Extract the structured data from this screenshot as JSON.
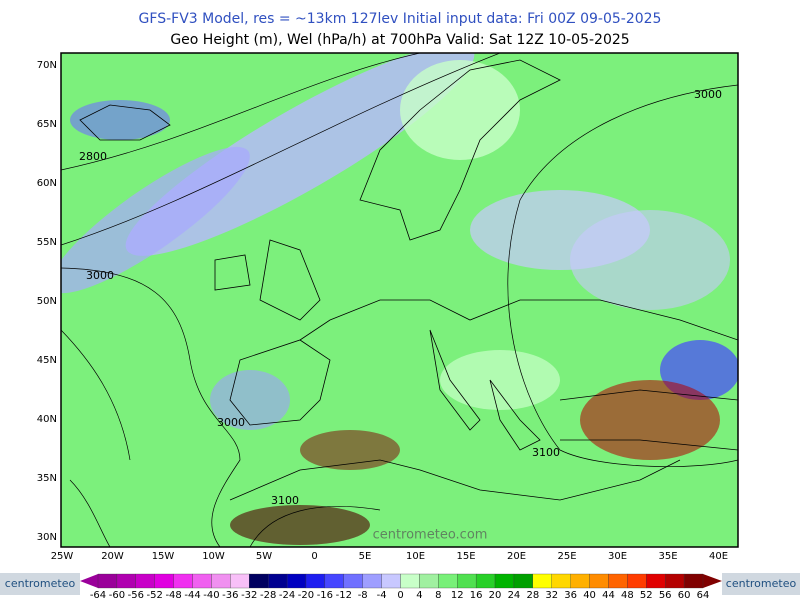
{
  "header": {
    "line1": "GFS-FV3 Model, res = ~13km 127lev    Initial input data: Fri 00Z 09-05-2025",
    "line2": "Geo Height (m), Wel (hPa/h) at 700hPa  Valid: Sat 12Z 10-05-2025"
  },
  "map": {
    "lat_labels": [
      "70N",
      "65N",
      "60N",
      "55N",
      "50N",
      "45N",
      "40N",
      "35N",
      "30N"
    ],
    "lon_labels": [
      "25W",
      "20W",
      "15W",
      "10W",
      "5W",
      "0",
      "5E",
      "10E",
      "15E",
      "20E",
      "25E",
      "30E",
      "35E",
      "40E"
    ],
    "contour_labels": [
      "2800",
      "3000",
      "3000",
      "3000",
      "3100",
      "3100"
    ],
    "watermark": "centrometeo.com"
  },
  "colorbar": {
    "levels": [
      -64,
      -60,
      -56,
      -52,
      -48,
      -44,
      -40,
      -36,
      -32,
      -28,
      -24,
      -20,
      -16,
      -12,
      -8,
      -4,
      0,
      4,
      8,
      12,
      16,
      20,
      24,
      28,
      32,
      36,
      40,
      44,
      48,
      52,
      56,
      60,
      64
    ],
    "colors": [
      "#9a009a",
      "#b000b0",
      "#c800c8",
      "#e000e0",
      "#f030f0",
      "#f060f0",
      "#f090f0",
      "#f8c0f8",
      "#000060",
      "#000090",
      "#0000c0",
      "#1e1ef0",
      "#4646ff",
      "#7070ff",
      "#9e9eff",
      "#c8c8ff",
      "#c8ffc8",
      "#a0f0a0",
      "#78f078",
      "#50e050",
      "#28d028",
      "#00b400",
      "#00a000",
      "#ffff00",
      "#ffd700",
      "#ffb000",
      "#ff8c00",
      "#ff6400",
      "#ff3c00",
      "#e00000",
      "#b40000",
      "#800000"
    ]
  },
  "logos": {
    "left": "centrometeo",
    "right": "centrometeo"
  }
}
